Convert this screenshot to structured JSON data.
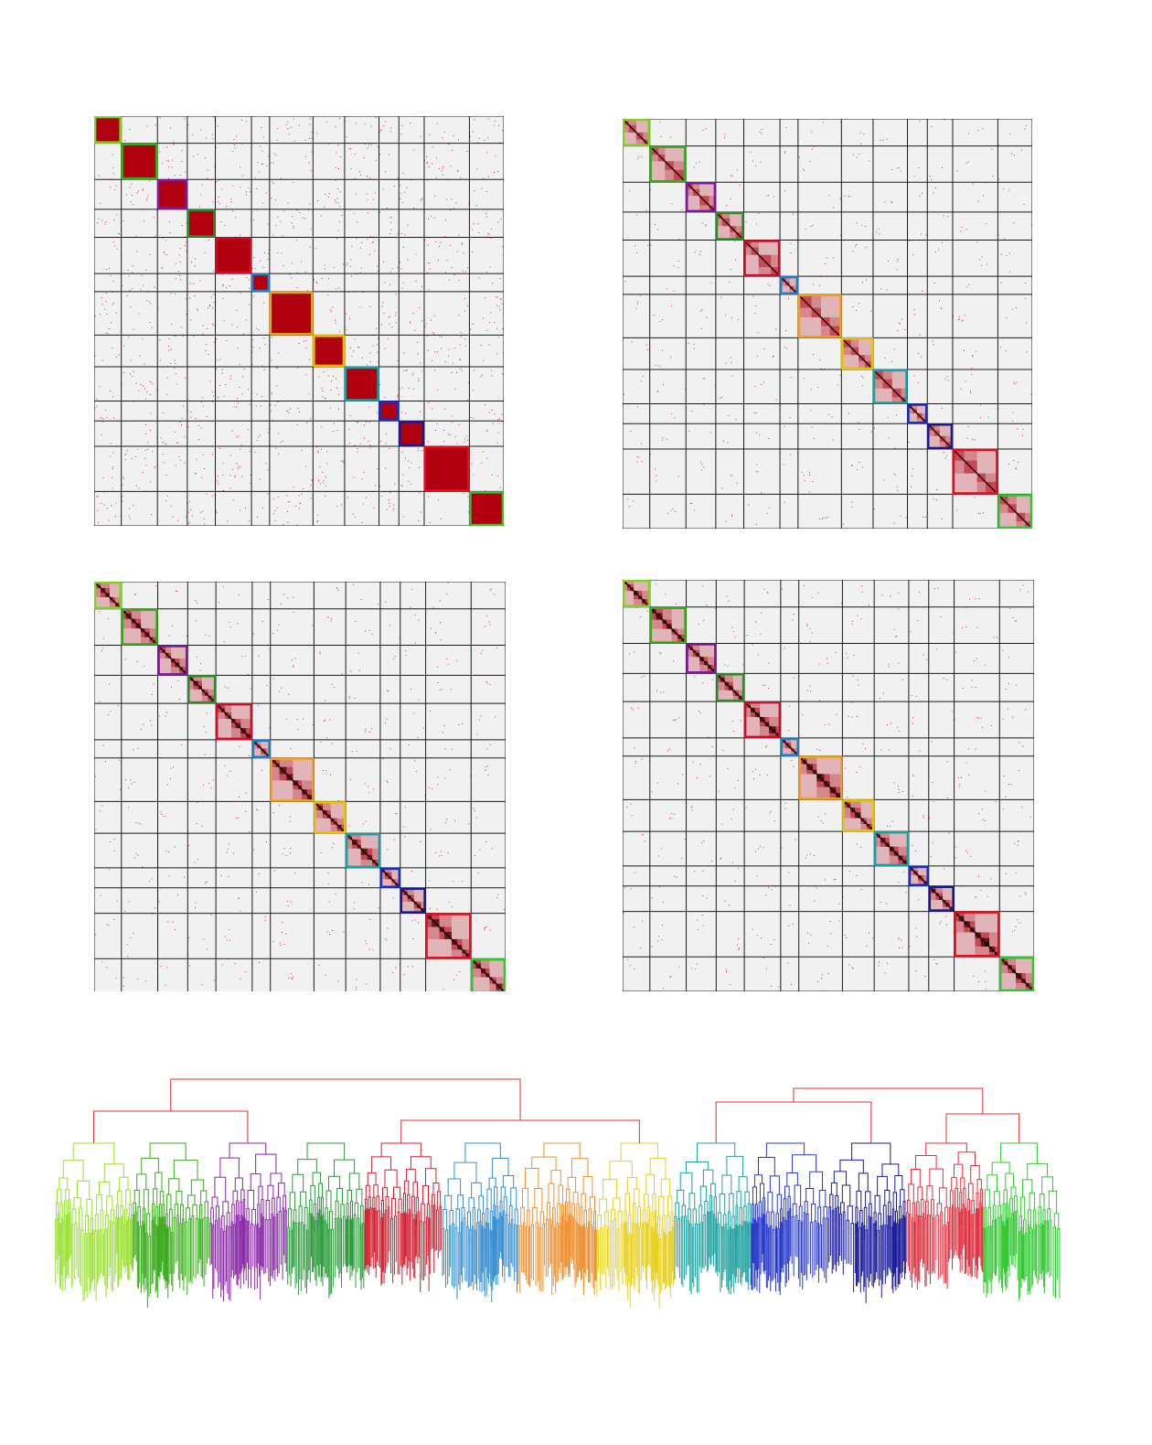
{
  "figure": {
    "colors": {
      "background": "#ffffff",
      "panel_bg": "#f1f1f1",
      "fill": "#b00010",
      "dark": "#2a0000",
      "grid": "#1a1a1a"
    },
    "panels": [
      {
        "id": "top-left",
        "style": "solid"
      },
      {
        "id": "top-right",
        "style": "nested-1"
      },
      {
        "id": "bottom-left",
        "style": "nested-2"
      },
      {
        "id": "bottom-right",
        "style": "nested-3"
      }
    ],
    "cluster_colors": [
      "#7ed321",
      "#3aaa1c",
      "#7a1a9a",
      "#2e8b2e",
      "#c8102e",
      "#1e7ec8",
      "#f0a020",
      "#e8c400",
      "#1aa0a0",
      "#1a2ec0",
      "#1a1a8c",
      "#e01020",
      "#2ec82e"
    ],
    "cluster_sizes": [
      30,
      40,
      33,
      31,
      40,
      20,
      48,
      35,
      38,
      22,
      28,
      50,
      38
    ],
    "dendrogram": {
      "top_color": "#e0303a",
      "leaf_colors": [
        "#9ae030",
        "#3aaa1c",
        "#8a2aa8",
        "#2e9a3e",
        "#d02030",
        "#3a8ed0",
        "#f09030",
        "#e8d020",
        "#20a0a0",
        "#2a3ac8",
        "#1a1a9c",
        "#e03040",
        "#30c830"
      ]
    }
  }
}
